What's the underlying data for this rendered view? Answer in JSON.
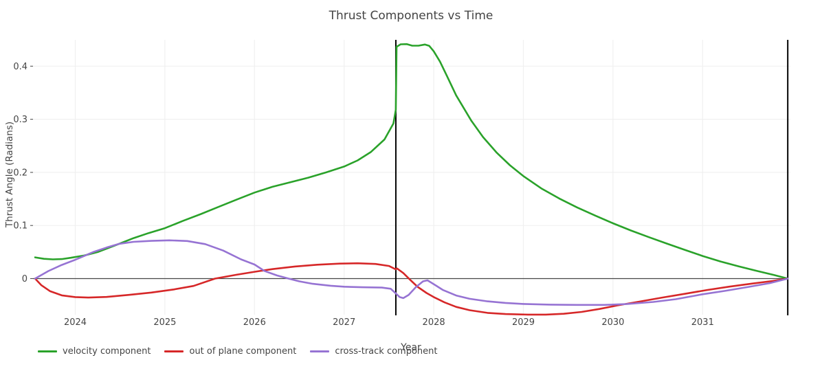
{
  "title": "Thrust Components vs Time",
  "axes": {
    "x_label": "Year",
    "y_label": "Thrust Angle (Radians)"
  },
  "chart_data": {
    "type": "line",
    "title": "Thrust Components vs Time",
    "xlabel": "Year",
    "ylabel": "Thrust Angle (Radians)",
    "x_ticks": [
      2024,
      2025,
      2026,
      2027,
      2028,
      2029,
      2030,
      2031
    ],
    "y_ticks": [
      0,
      0.1,
      0.2,
      0.3,
      0.4
    ],
    "xlim": [
      2023.53,
      2032.0
    ],
    "ylim": [
      -0.072,
      0.452
    ],
    "grid": true,
    "zero_line": true,
    "legend_position": "bottom-left",
    "marker_lines_x": [
      2027.577,
      2031.95
    ],
    "series": [
      {
        "name": "velocity component",
        "color": "#2aa22a",
        "points": [
          [
            2023.552,
            0.04
          ],
          [
            2023.65,
            0.0372
          ],
          [
            2023.75,
            0.0362
          ],
          [
            2023.85,
            0.0368
          ],
          [
            2023.95,
            0.0392
          ],
          [
            2024.1,
            0.0435
          ],
          [
            2024.25,
            0.05
          ],
          [
            2024.49,
            0.0655
          ],
          [
            2024.65,
            0.0762
          ],
          [
            2024.82,
            0.0858
          ],
          [
            2025.0,
            0.095
          ],
          [
            2025.2,
            0.1085
          ],
          [
            2025.4,
            0.1215
          ],
          [
            2025.6,
            0.135
          ],
          [
            2025.8,
            0.1487
          ],
          [
            2026.0,
            0.162
          ],
          [
            2026.2,
            0.1728
          ],
          [
            2026.4,
            0.1815
          ],
          [
            2026.6,
            0.19
          ],
          [
            2026.8,
            0.2
          ],
          [
            2027.0,
            0.211
          ],
          [
            2027.15,
            0.2225
          ],
          [
            2027.3,
            0.2385
          ],
          [
            2027.45,
            0.262
          ],
          [
            2027.55,
            0.292
          ],
          [
            2027.577,
            0.318
          ],
          [
            2027.585,
            0.4365
          ],
          [
            2027.63,
            0.4412
          ],
          [
            2027.7,
            0.4415
          ],
          [
            2027.76,
            0.4385
          ],
          [
            2027.83,
            0.4385
          ],
          [
            2027.9,
            0.4408
          ],
          [
            2027.95,
            0.4382
          ],
          [
            2028.0,
            0.428
          ],
          [
            2028.07,
            0.4085
          ],
          [
            2028.15,
            0.3805
          ],
          [
            2028.25,
            0.345
          ],
          [
            2028.42,
            0.297
          ],
          [
            2028.55,
            0.2665
          ],
          [
            2028.7,
            0.2375
          ],
          [
            2028.85,
            0.2135
          ],
          [
            2029.0,
            0.193
          ],
          [
            2029.2,
            0.1698
          ],
          [
            2029.4,
            0.1508
          ],
          [
            2029.6,
            0.134
          ],
          [
            2029.8,
            0.1188
          ],
          [
            2030.0,
            0.1042
          ],
          [
            2030.2,
            0.0905
          ],
          [
            2030.4,
            0.078
          ],
          [
            2030.6,
            0.066
          ],
          [
            2030.8,
            0.0542
          ],
          [
            2031.0,
            0.0425
          ],
          [
            2031.2,
            0.0322
          ],
          [
            2031.4,
            0.0232
          ],
          [
            2031.6,
            0.0148
          ],
          [
            2031.8,
            0.0066
          ],
          [
            2031.95,
            0.0
          ]
        ]
      },
      {
        "name": "out of plane component",
        "color": "#d62728",
        "points": [
          [
            2023.552,
            0.0
          ],
          [
            2023.62,
            -0.0122
          ],
          [
            2023.72,
            -0.0238
          ],
          [
            2023.85,
            -0.0316
          ],
          [
            2024.0,
            -0.0348
          ],
          [
            2024.15,
            -0.0357
          ],
          [
            2024.35,
            -0.0346
          ],
          [
            2024.6,
            -0.0307
          ],
          [
            2024.85,
            -0.0262
          ],
          [
            2025.1,
            -0.0205
          ],
          [
            2025.32,
            -0.0138
          ],
          [
            2025.56,
            0.0
          ],
          [
            2025.8,
            0.0072
          ],
          [
            2026.0,
            0.0128
          ],
          [
            2026.2,
            0.0178
          ],
          [
            2026.45,
            0.0228
          ],
          [
            2026.7,
            0.0261
          ],
          [
            2026.95,
            0.0282
          ],
          [
            2027.15,
            0.0288
          ],
          [
            2027.35,
            0.0276
          ],
          [
            2027.5,
            0.0238
          ],
          [
            2027.575,
            0.0175
          ],
          [
            2027.59,
            0.0192
          ],
          [
            2027.66,
            0.0105
          ],
          [
            2027.73,
            -0.0012
          ],
          [
            2027.82,
            -0.0155
          ],
          [
            2027.92,
            -0.0272
          ],
          [
            2028.0,
            -0.0348
          ],
          [
            2028.12,
            -0.0448
          ],
          [
            2028.25,
            -0.0533
          ],
          [
            2028.4,
            -0.0595
          ],
          [
            2028.6,
            -0.0645
          ],
          [
            2028.8,
            -0.0668
          ],
          [
            2029.05,
            -0.0678
          ],
          [
            2029.25,
            -0.0678
          ],
          [
            2029.45,
            -0.0662
          ],
          [
            2029.65,
            -0.0627
          ],
          [
            2029.85,
            -0.0572
          ],
          [
            2030.05,
            -0.0505
          ],
          [
            2030.3,
            -0.0432
          ],
          [
            2030.55,
            -0.0357
          ],
          [
            2030.8,
            -0.0287
          ],
          [
            2031.05,
            -0.0215
          ],
          [
            2031.3,
            -0.0152
          ],
          [
            2031.55,
            -0.0095
          ],
          [
            2031.78,
            -0.0045
          ],
          [
            2031.95,
            0.0
          ]
        ]
      },
      {
        "name": "cross-track component",
        "color": "#9673d3",
        "points": [
          [
            2023.552,
            0.0
          ],
          [
            2023.7,
            0.0142
          ],
          [
            2023.85,
            0.0258
          ],
          [
            2024.0,
            0.0355
          ],
          [
            2024.2,
            0.05
          ],
          [
            2024.35,
            0.0585
          ],
          [
            2024.49,
            0.0655
          ],
          [
            2024.65,
            0.0692
          ],
          [
            2024.85,
            0.071
          ],
          [
            2025.05,
            0.072
          ],
          [
            2025.25,
            0.0708
          ],
          [
            2025.45,
            0.065
          ],
          [
            2025.65,
            0.0528
          ],
          [
            2025.85,
            0.0362
          ],
          [
            2026.0,
            0.0265
          ],
          [
            2026.11,
            0.0145
          ],
          [
            2026.25,
            0.006
          ],
          [
            2026.38,
            0.0
          ],
          [
            2026.5,
            -0.0052
          ],
          [
            2026.65,
            -0.0098
          ],
          [
            2026.85,
            -0.0135
          ],
          [
            2027.0,
            -0.0153
          ],
          [
            2027.2,
            -0.0163
          ],
          [
            2027.42,
            -0.017
          ],
          [
            2027.52,
            -0.0192
          ],
          [
            2027.577,
            -0.028
          ],
          [
            2027.62,
            -0.0348
          ],
          [
            2027.66,
            -0.0368
          ],
          [
            2027.72,
            -0.0308
          ],
          [
            2027.8,
            -0.0162
          ],
          [
            2027.88,
            -0.0052
          ],
          [
            2027.93,
            -0.0032
          ],
          [
            2028.0,
            -0.0105
          ],
          [
            2028.1,
            -0.0212
          ],
          [
            2028.25,
            -0.0318
          ],
          [
            2028.4,
            -0.038
          ],
          [
            2028.6,
            -0.0428
          ],
          [
            2028.8,
            -0.0458
          ],
          [
            2029.0,
            -0.0478
          ],
          [
            2029.3,
            -0.049
          ],
          [
            2029.6,
            -0.0496
          ],
          [
            2029.9,
            -0.0496
          ],
          [
            2030.15,
            -0.048
          ],
          [
            2030.45,
            -0.044
          ],
          [
            2030.7,
            -0.0388
          ],
          [
            2031.0,
            -0.0295
          ],
          [
            2031.25,
            -0.0232
          ],
          [
            2031.5,
            -0.016
          ],
          [
            2031.75,
            -0.0085
          ],
          [
            2031.95,
            0.0
          ]
        ]
      }
    ]
  }
}
